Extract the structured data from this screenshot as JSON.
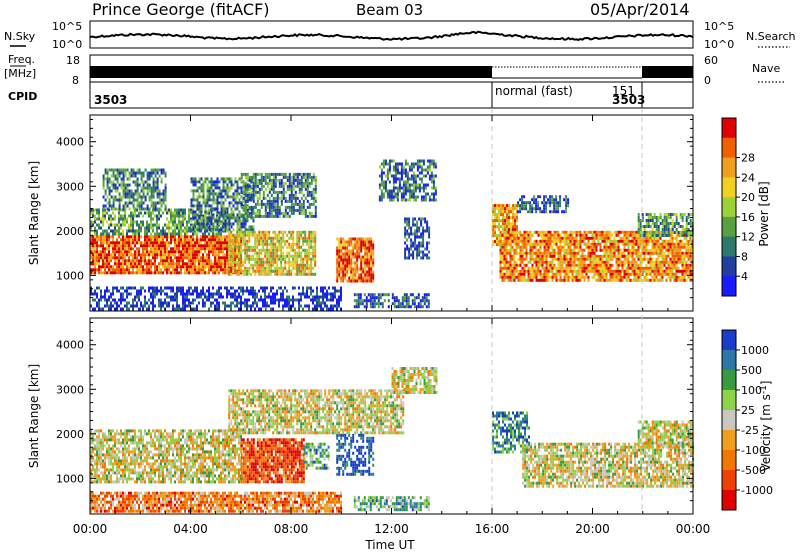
{
  "header": {
    "title": "Prince George (fitACF)",
    "beam": "Beam 03",
    "date": "05/Apr/2014"
  },
  "nsky_panel": {
    "left_label": "N.Sky",
    "right_label": "N.Search",
    "tick_top": "10^5",
    "tick_bottom": "10^0"
  },
  "freq_panel": {
    "left_label_1": "Freq.",
    "left_label_2": "[MHz]",
    "left_ticks": [
      "18",
      "8"
    ],
    "right_label": "Nave",
    "right_ticks": [
      "60",
      "0"
    ]
  },
  "cpid_panel": {
    "label": "CPID",
    "segments": [
      {
        "start_hour": 0,
        "end_hour": 16,
        "id": "3503",
        "name": ""
      },
      {
        "start_hour": 16,
        "end_hour": 22,
        "id": "151",
        "name": "normal (fast)"
      },
      {
        "start_hour": 22,
        "end_hour": 24,
        "id": "3503",
        "name": ""
      }
    ]
  },
  "time_axis": {
    "label": "Time UT",
    "ticks": [
      "00:00",
      "04:00",
      "08:00",
      "12:00",
      "16:00",
      "20:00",
      "00:00"
    ]
  },
  "chart_data": [
    {
      "type": "heatmap",
      "name": "power",
      "ylabel": "Slant Range [km]",
      "yticks": [
        "1000",
        "2000",
        "3000",
        "4000"
      ],
      "xlim": [
        0,
        24
      ],
      "ylim": [
        200,
        4600
      ],
      "colorbar_label": "Power [dB]",
      "colorbar_ticks": [
        "4",
        "8",
        "12",
        "16",
        "20",
        "24",
        "28"
      ],
      "colors": [
        "#1a1aff",
        "#2040a0",
        "#2e7a6a",
        "#5aa040",
        "#9ad23a",
        "#f0d020",
        "#f0a020",
        "#f06000",
        "#e00000"
      ],
      "bands": [
        {
          "t0": 0.0,
          "t1": 6.0,
          "r0": 1050,
          "r1": 1900,
          "level": 0.85
        },
        {
          "t0": 0.0,
          "t1": 5.5,
          "r0": 1900,
          "r1": 2500,
          "level": 0.35
        },
        {
          "t0": 0.5,
          "t1": 3.0,
          "r0": 2500,
          "r1": 3400,
          "level": 0.3
        },
        {
          "t0": 4.0,
          "t1": 6.5,
          "r0": 2000,
          "r1": 3200,
          "level": 0.3
        },
        {
          "t0": 5.5,
          "t1": 9.0,
          "r0": 1000,
          "r1": 2000,
          "level": 0.6
        },
        {
          "t0": 6.0,
          "t1": 9.0,
          "r0": 2300,
          "r1": 3300,
          "level": 0.3
        },
        {
          "t0": 9.8,
          "t1": 11.3,
          "r0": 850,
          "r1": 1850,
          "level": 0.8
        },
        {
          "t0": 11.5,
          "t1": 13.8,
          "r0": 2700,
          "r1": 3600,
          "level": 0.25
        },
        {
          "t0": 12.5,
          "t1": 13.5,
          "r0": 1400,
          "r1": 2300,
          "level": 0.2
        },
        {
          "t0": 16.0,
          "t1": 17.0,
          "r0": 1700,
          "r1": 2600,
          "level": 0.7
        },
        {
          "t0": 16.3,
          "t1": 24.0,
          "r0": 900,
          "r1": 2000,
          "level": 0.75
        },
        {
          "t0": 17.0,
          "t1": 19.0,
          "r0": 2400,
          "r1": 2800,
          "level": 0.2
        },
        {
          "t0": 21.8,
          "t1": 24.0,
          "r0": 1900,
          "r1": 2400,
          "level": 0.35
        },
        {
          "t0": 0.0,
          "t1": 10.0,
          "r0": 250,
          "r1": 750,
          "level": 0.1
        },
        {
          "t0": 10.5,
          "t1": 13.5,
          "r0": 300,
          "r1": 600,
          "level": 0.2
        }
      ]
    },
    {
      "type": "heatmap",
      "name": "velocity",
      "ylabel": "Slant Range [km]",
      "yticks": [
        "1000",
        "2000",
        "3000",
        "4000"
      ],
      "xlim": [
        0,
        24
      ],
      "ylim": [
        200,
        4600
      ],
      "colorbar_label": "Velocity [m s^-1]",
      "colorbar_ticks": [
        "1000",
        "500",
        "100",
        "25",
        "-25",
        "-100",
        "-500",
        "-1000"
      ],
      "colors": [
        "#1a3cc8",
        "#2a78a8",
        "#3a9a40",
        "#8cd24a",
        "#c8c8c0",
        "#f0a020",
        "#f07800",
        "#f04000",
        "#e00000"
      ],
      "bands": [
        {
          "t0": 0.0,
          "t1": 6.0,
          "r0": 900,
          "r1": 2100,
          "level": 0.5
        },
        {
          "t0": 6.0,
          "t1": 8.5,
          "r0": 950,
          "r1": 1900,
          "level": 0.85
        },
        {
          "t0": 8.5,
          "t1": 9.5,
          "r0": 1200,
          "r1": 1800,
          "level": 0.3
        },
        {
          "t0": 9.8,
          "t1": 11.3,
          "r0": 1100,
          "r1": 2000,
          "level": 0.05
        },
        {
          "t0": 5.5,
          "t1": 12.5,
          "r0": 2000,
          "r1": 3000,
          "level": 0.5
        },
        {
          "t0": 12.0,
          "t1": 13.8,
          "r0": 2900,
          "r1": 3500,
          "level": 0.5
        },
        {
          "t0": 16.0,
          "t1": 17.5,
          "r0": 1600,
          "r1": 2500,
          "level": 0.2
        },
        {
          "t0": 17.2,
          "t1": 24.0,
          "r0": 850,
          "r1": 1800,
          "level": 0.5
        },
        {
          "t0": 21.8,
          "t1": 24.0,
          "r0": 1700,
          "r1": 2300,
          "level": 0.5
        },
        {
          "t0": 0.0,
          "t1": 10.0,
          "r0": 250,
          "r1": 700,
          "level": 0.7
        },
        {
          "t0": 10.5,
          "t1": 13.5,
          "r0": 300,
          "r1": 600,
          "level": 0.3
        }
      ]
    }
  ]
}
